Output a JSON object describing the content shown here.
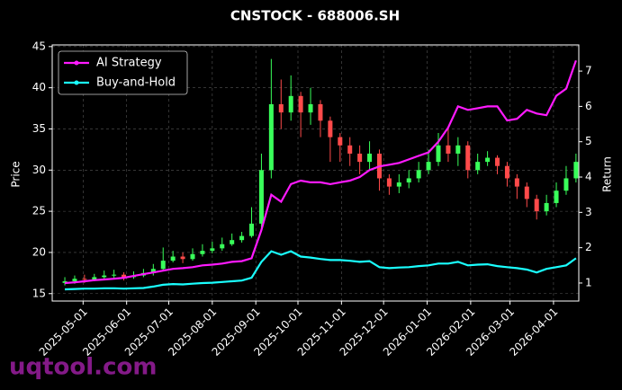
{
  "chart_data": {
    "type": "candlestick",
    "title": "CNSTOCK - 688006.SH",
    "ylabel": "Price",
    "y2label": "Return",
    "watermark": "uqtool.com",
    "x": [
      "2025-04-18",
      "2025-04-25",
      "2025-05-02",
      "2025-05-09",
      "2025-05-16",
      "2025-05-23",
      "2025-05-30",
      "2025-06-06",
      "2025-06-13",
      "2025-06-20",
      "2025-06-27",
      "2025-07-04",
      "2025-07-11",
      "2025-07-18",
      "2025-07-25",
      "2025-08-01",
      "2025-08-08",
      "2025-08-15",
      "2025-08-22",
      "2025-08-29",
      "2025-09-05",
      "2025-09-12",
      "2025-09-19",
      "2025-09-26",
      "2025-10-03",
      "2025-10-10",
      "2025-10-17",
      "2025-10-24",
      "2025-10-31",
      "2025-11-07",
      "2025-11-14",
      "2025-11-21",
      "2025-11-28",
      "2025-12-05",
      "2025-12-12",
      "2025-12-19",
      "2025-12-26",
      "2026-01-02",
      "2026-01-09",
      "2026-01-16",
      "2026-01-23",
      "2026-01-30",
      "2026-02-06",
      "2026-02-13",
      "2026-02-20",
      "2026-02-27",
      "2026-03-06",
      "2026-03-13",
      "2026-03-20",
      "2026-03-27",
      "2026-04-03",
      "2026-04-10",
      "2026-04-17"
    ],
    "ohlc": {
      "up_color": "#39ff5a",
      "down_color": "#ff4a4a",
      "open": [
        16.3,
        16.5,
        16.8,
        16.7,
        17.0,
        17.2,
        17.3,
        17.0,
        17.2,
        17.5,
        18.0,
        19.0,
        19.5,
        19.2,
        19.8,
        20.2,
        20.5,
        21.0,
        21.5,
        22.0,
        23.5,
        30.0,
        38.0,
        37.0,
        39.0,
        37.0,
        38.0,
        36.0,
        34.0,
        33.0,
        32.0,
        31.0,
        32.0,
        29.0,
        28.0,
        28.5,
        29.0,
        30.0,
        31.0,
        33.0,
        32.0,
        33.0,
        30.0,
        31.0,
        31.5,
        30.5,
        29.0,
        28.0,
        26.5,
        25.0,
        26.0,
        27.5,
        29.0
      ],
      "high": [
        17.0,
        17.2,
        17.3,
        17.4,
        17.8,
        17.9,
        17.6,
        17.7,
        18.0,
        18.6,
        20.6,
        20.2,
        20.0,
        20.5,
        21.0,
        21.3,
        21.8,
        22.3,
        22.5,
        25.5,
        32.0,
        43.5,
        41.0,
        41.5,
        39.5,
        40.0,
        38.5,
        36.5,
        34.5,
        34.0,
        33.0,
        33.5,
        32.5,
        29.5,
        29.5,
        30.0,
        31.0,
        32.5,
        34.5,
        35.0,
        34.0,
        33.5,
        32.0,
        32.3,
        31.8,
        31.0,
        29.5,
        28.5,
        27.0,
        27.0,
        28.5,
        30.5,
        32.0
      ],
      "low": [
        16.0,
        16.2,
        16.3,
        16.5,
        16.8,
        16.9,
        16.6,
        16.8,
        17.0,
        17.2,
        17.8,
        18.8,
        18.7,
        19.0,
        19.5,
        19.9,
        20.2,
        20.8,
        21.2,
        21.8,
        22.5,
        29.0,
        35.0,
        36.0,
        34.0,
        35.5,
        34.0,
        31.0,
        31.0,
        30.5,
        29.5,
        30.0,
        27.5,
        27.0,
        27.2,
        27.8,
        28.5,
        29.5,
        30.5,
        31.0,
        30.5,
        29.0,
        29.5,
        30.5,
        29.5,
        28.0,
        26.5,
        25.5,
        24.0,
        24.5,
        25.5,
        27.0,
        28.5
      ],
      "close": [
        16.5,
        16.8,
        16.7,
        17.0,
        17.2,
        17.3,
        17.0,
        17.2,
        17.5,
        18.0,
        19.0,
        19.5,
        19.2,
        19.8,
        20.2,
        20.5,
        21.0,
        21.5,
        22.0,
        23.5,
        30.0,
        38.0,
        37.0,
        39.0,
        37.0,
        38.0,
        36.0,
        34.0,
        33.0,
        32.0,
        31.0,
        32.0,
        29.0,
        28.0,
        28.5,
        29.0,
        30.0,
        31.0,
        33.0,
        32.0,
        33.0,
        30.0,
        31.0,
        31.5,
        30.5,
        29.0,
        28.0,
        26.5,
        25.0,
        26.0,
        27.5,
        29.0,
        31.0
      ]
    },
    "series": [
      {
        "name": "AI Strategy",
        "color": "#ff1aff",
        "axis": "y2",
        "values": [
          1.0,
          1.02,
          1.05,
          1.08,
          1.1,
          1.12,
          1.15,
          1.2,
          1.25,
          1.3,
          1.35,
          1.4,
          1.42,
          1.45,
          1.5,
          1.52,
          1.55,
          1.6,
          1.62,
          1.7,
          2.5,
          3.5,
          3.3,
          3.8,
          3.9,
          3.85,
          3.85,
          3.8,
          3.85,
          3.9,
          4.0,
          4.2,
          4.3,
          4.35,
          4.4,
          4.5,
          4.6,
          4.7,
          5.0,
          5.4,
          6.0,
          5.9,
          5.95,
          6.0,
          6.0,
          5.6,
          5.65,
          5.9,
          5.8,
          5.75,
          6.3,
          6.5,
          7.3
        ]
      },
      {
        "name": "Buy-and-Hold",
        "color": "#1affff",
        "axis": "y2",
        "values": [
          0.82,
          0.83,
          0.84,
          0.84,
          0.85,
          0.85,
          0.84,
          0.85,
          0.86,
          0.9,
          0.95,
          0.97,
          0.96,
          0.98,
          1.0,
          1.01,
          1.03,
          1.05,
          1.07,
          1.15,
          1.6,
          1.9,
          1.8,
          1.9,
          1.75,
          1.72,
          1.68,
          1.65,
          1.65,
          1.63,
          1.6,
          1.62,
          1.45,
          1.42,
          1.44,
          1.45,
          1.48,
          1.5,
          1.55,
          1.55,
          1.6,
          1.5,
          1.52,
          1.53,
          1.48,
          1.45,
          1.42,
          1.38,
          1.3,
          1.4,
          1.45,
          1.5,
          1.7
        ]
      }
    ],
    "xlim": [
      "2025-04-09",
      "2026-04-19"
    ],
    "xticks": [
      "2025-05-01",
      "2025-06-01",
      "2025-07-01",
      "2025-08-01",
      "2025-09-01",
      "2025-10-01",
      "2025-11-01",
      "2025-12-01",
      "2026-01-01",
      "2026-02-01",
      "2026-03-01",
      "2026-04-01"
    ],
    "ylim": [
      14.1,
      45.2
    ],
    "yticks": [
      15,
      20,
      25,
      30,
      35,
      40,
      45
    ],
    "y2lim": [
      0.49,
      7.74
    ],
    "y2ticks": [
      1,
      2,
      3,
      4,
      5,
      6,
      7
    ],
    "grid": true,
    "legend": "upper left"
  }
}
